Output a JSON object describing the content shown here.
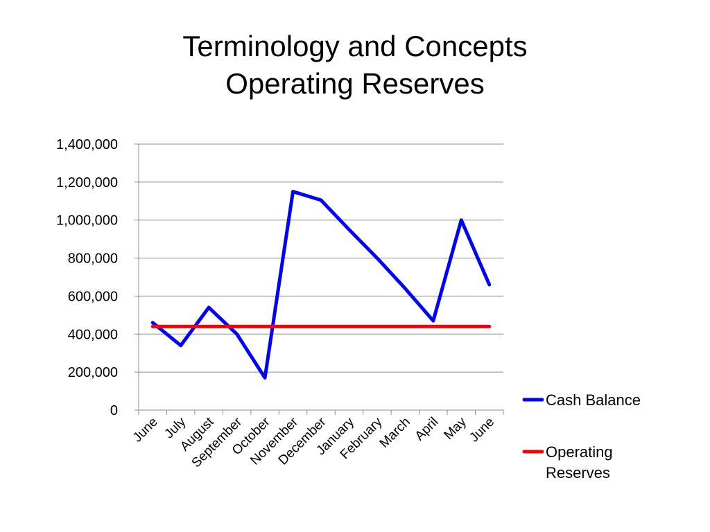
{
  "title": {
    "line1": "Terminology and Concepts",
    "line2": "Operating Reserves"
  },
  "chart_data": {
    "type": "line",
    "categories": [
      "June",
      "July",
      "August",
      "September",
      "October",
      "November",
      "December",
      "January",
      "February",
      "March",
      "April",
      "May",
      "June"
    ],
    "series": [
      {
        "name": "Cash Balance",
        "color": "#0000ff",
        "values": [
          460000,
          340000,
          540000,
          400000,
          170000,
          1150000,
          1105000,
          950000,
          800000,
          640000,
          470000,
          1000000,
          660000
        ]
      },
      {
        "name": "Operating Reserves",
        "color": "#ff0000",
        "values": [
          440000,
          440000,
          440000,
          440000,
          440000,
          440000,
          440000,
          440000,
          440000,
          440000,
          440000,
          440000,
          440000
        ]
      }
    ],
    "ylim": [
      0,
      1400000
    ],
    "yticks": [
      "0",
      "200,000",
      "400,000",
      "600,000",
      "800,000",
      "1,000,000",
      "1,200,000",
      "1,400,000"
    ],
    "ytick_values": [
      0,
      200000,
      400000,
      600000,
      800000,
      1000000,
      1200000,
      1400000
    ],
    "grid": "horizontal",
    "legend": {
      "placement": "right",
      "entries": [
        {
          "lines": [
            "Cash Balance"
          ],
          "color": "#0000ff"
        },
        {
          "lines": [
            "Operating",
            "Reserves"
          ],
          "color": "#ff0000"
        }
      ]
    }
  }
}
